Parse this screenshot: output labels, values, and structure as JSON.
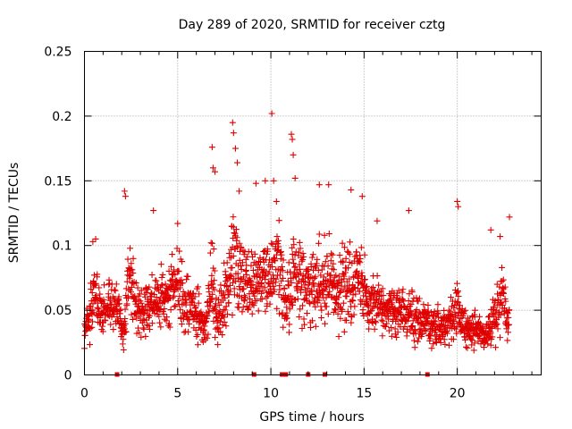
{
  "chart_data": {
    "type": "scatter",
    "title": "Day 289 of 2020, SRMTID for receiver cztg",
    "xlabel": "GPS time / hours",
    "ylabel": "SRMTID / TECUs",
    "xlim": [
      0,
      24.5
    ],
    "ylim": [
      0,
      0.25
    ],
    "x_ticks": [
      0,
      5,
      10,
      15,
      20
    ],
    "y_ticks": [
      0,
      0.05,
      0.1,
      0.15,
      0.2,
      0.25
    ],
    "x_tick_labels": [
      "0",
      "5",
      "10",
      "15",
      "20"
    ],
    "y_tick_labels": [
      "0",
      "0.05",
      "0.1",
      "0.15",
      "0.2",
      "0.25"
    ],
    "grid": true,
    "marker": "+",
    "color": "#e00000",
    "series": [
      {
        "name": "SRMTID",
        "profile": [
          [
            0.0,
            0.035,
            0.015
          ],
          [
            0.3,
            0.045,
            0.02
          ],
          [
            0.5,
            0.07,
            0.03
          ],
          [
            0.8,
            0.05,
            0.02
          ],
          [
            1.0,
            0.05,
            0.02
          ],
          [
            1.4,
            0.06,
            0.02
          ],
          [
            1.8,
            0.05,
            0.02
          ],
          [
            2.1,
            0.03,
            0.015
          ],
          [
            2.4,
            0.08,
            0.035
          ],
          [
            2.8,
            0.05,
            0.02
          ],
          [
            3.2,
            0.05,
            0.02
          ],
          [
            3.6,
            0.055,
            0.025
          ],
          [
            4.0,
            0.06,
            0.025
          ],
          [
            4.5,
            0.06,
            0.025
          ],
          [
            5.0,
            0.07,
            0.03
          ],
          [
            5.5,
            0.055,
            0.025
          ],
          [
            6.0,
            0.05,
            0.025
          ],
          [
            6.5,
            0.035,
            0.015
          ],
          [
            6.8,
            0.07,
            0.04
          ],
          [
            7.2,
            0.045,
            0.02
          ],
          [
            7.6,
            0.06,
            0.03
          ],
          [
            8.0,
            0.09,
            0.045
          ],
          [
            8.4,
            0.075,
            0.03
          ],
          [
            8.8,
            0.07,
            0.03
          ],
          [
            9.2,
            0.07,
            0.03
          ],
          [
            9.6,
            0.075,
            0.03
          ],
          [
            10.0,
            0.07,
            0.03
          ],
          [
            10.4,
            0.09,
            0.04
          ],
          [
            10.8,
            0.05,
            0.02
          ],
          [
            11.2,
            0.08,
            0.035
          ],
          [
            11.6,
            0.07,
            0.03
          ],
          [
            12.0,
            0.065,
            0.03
          ],
          [
            12.4,
            0.065,
            0.03
          ],
          [
            12.8,
            0.08,
            0.035
          ],
          [
            13.2,
            0.07,
            0.03
          ],
          [
            13.6,
            0.06,
            0.025
          ],
          [
            14.0,
            0.075,
            0.035
          ],
          [
            14.4,
            0.065,
            0.03
          ],
          [
            14.8,
            0.08,
            0.035
          ],
          [
            15.2,
            0.05,
            0.025
          ],
          [
            15.6,
            0.06,
            0.025
          ],
          [
            16.0,
            0.05,
            0.02
          ],
          [
            16.5,
            0.05,
            0.02
          ],
          [
            17.0,
            0.05,
            0.02
          ],
          [
            17.5,
            0.045,
            0.02
          ],
          [
            18.0,
            0.04,
            0.02
          ],
          [
            18.5,
            0.04,
            0.018
          ],
          [
            19.0,
            0.035,
            0.018
          ],
          [
            19.5,
            0.04,
            0.018
          ],
          [
            20.0,
            0.05,
            0.025
          ],
          [
            20.5,
            0.035,
            0.015
          ],
          [
            21.0,
            0.035,
            0.015
          ],
          [
            21.5,
            0.03,
            0.012
          ],
          [
            22.0,
            0.045,
            0.025
          ],
          [
            22.4,
            0.06,
            0.025
          ],
          [
            22.8,
            0.04,
            0.02
          ]
        ],
        "outliers": [
          [
            0.45,
            0.103
          ],
          [
            0.6,
            0.105
          ],
          [
            2.15,
            0.142
          ],
          [
            2.2,
            0.138
          ],
          [
            3.7,
            0.127
          ],
          [
            5.0,
            0.117
          ],
          [
            6.85,
            0.176
          ],
          [
            6.9,
            0.16
          ],
          [
            7.0,
            0.157
          ],
          [
            7.95,
            0.195
          ],
          [
            8.0,
            0.187
          ],
          [
            8.1,
            0.175
          ],
          [
            8.2,
            0.164
          ],
          [
            8.3,
            0.142
          ],
          [
            9.2,
            0.148
          ],
          [
            9.7,
            0.15
          ],
          [
            10.05,
            0.202
          ],
          [
            10.15,
            0.15
          ],
          [
            10.3,
            0.134
          ],
          [
            11.1,
            0.186
          ],
          [
            11.15,
            0.182
          ],
          [
            11.2,
            0.17
          ],
          [
            11.3,
            0.152
          ],
          [
            12.6,
            0.147
          ],
          [
            13.1,
            0.147
          ],
          [
            14.3,
            0.143
          ],
          [
            14.9,
            0.138
          ],
          [
            15.7,
            0.119
          ],
          [
            17.4,
            0.127
          ],
          [
            20.0,
            0.134
          ],
          [
            20.05,
            0.13
          ],
          [
            21.8,
            0.112
          ],
          [
            22.3,
            0.107
          ],
          [
            22.8,
            0.122
          ]
        ]
      }
    ],
    "baseline_markers_x": [
      1.75,
      9.1,
      10.6,
      10.7,
      10.8,
      12.0,
      12.9,
      18.4
    ]
  }
}
